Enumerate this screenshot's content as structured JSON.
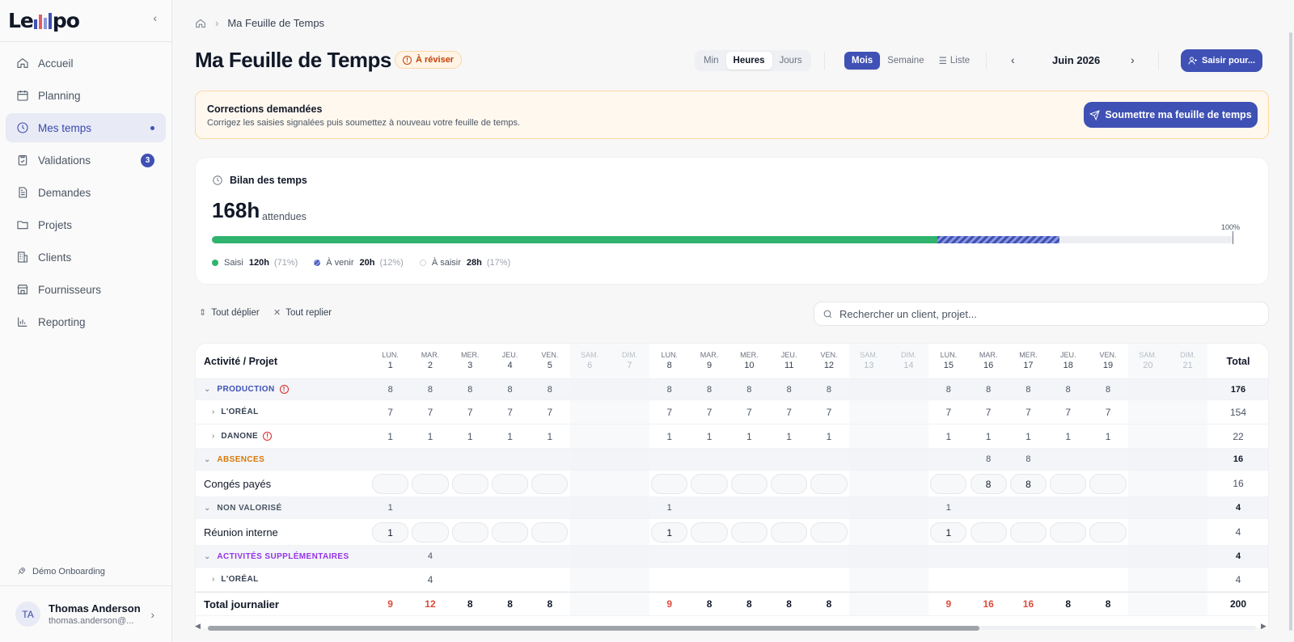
{
  "app": {
    "logo_text_start": "Le",
    "logo_text_end": "po",
    "collapse_icon": "chevron-left-icon"
  },
  "sidebar": {
    "items": [
      {
        "label": "Accueil",
        "icon": "home-icon"
      },
      {
        "label": "Planning",
        "icon": "calendar-icon"
      },
      {
        "label": "Mes temps",
        "icon": "clock-icon",
        "active": true,
        "dot": true
      },
      {
        "label": "Validations",
        "icon": "clipboard-check-icon",
        "badge": "3"
      },
      {
        "label": "Demandes",
        "icon": "document-icon"
      },
      {
        "label": "Projets",
        "icon": "folder-icon"
      },
      {
        "label": "Clients",
        "icon": "building-icon"
      },
      {
        "label": "Fournisseurs",
        "icon": "store-icon"
      },
      {
        "label": "Reporting",
        "icon": "bar-chart-icon"
      }
    ],
    "demo_link": "Démo Onboarding",
    "user": {
      "initials": "TA",
      "name": "Thomas Anderson",
      "email": "thomas.anderson@..."
    }
  },
  "header": {
    "breadcrumb": "Ma Feuille de Temps",
    "title": "Ma Feuille de Temps",
    "status_badge": "À réviser",
    "unit_options": [
      "Min",
      "Heures",
      "Jours"
    ],
    "unit_selected": "Heures",
    "view_options": [
      "Mois",
      "Semaine",
      "Liste"
    ],
    "view_selected": "Mois",
    "month": "Juin 2026",
    "saisir_button": "Saisir pour..."
  },
  "alert": {
    "title": "Corrections demandées",
    "description": "Corrigez les saisies signalées puis soumettez à nouveau votre feuille de temps.",
    "submit_button": "Soumettre ma feuille de temps"
  },
  "bilan": {
    "title": "Bilan des temps",
    "total": "168h",
    "total_suffix": "attendues",
    "end_label": "100%",
    "saisi": {
      "label": "Saisi",
      "value": "120h",
      "pct": "(71%)",
      "fraction": 0.71,
      "color": "#2fb36f"
    },
    "a_venir": {
      "label": "À venir",
      "value": "20h",
      "pct": "(12%)",
      "fraction": 0.12,
      "color": "#3f51b5"
    },
    "a_saisir": {
      "label": "À saisir",
      "value": "28h",
      "pct": "(17%)",
      "fraction": 0.17,
      "color": "#e5e7eb"
    }
  },
  "toolbar": {
    "expand_all": "Tout déplier",
    "collapse_all": "Tout replier",
    "search_placeholder": "Rechercher un client, projet..."
  },
  "grid": {
    "header_label": "Activité / Projet",
    "total_label": "Total",
    "days": [
      {
        "dow": "LUN.",
        "n": "1"
      },
      {
        "dow": "MAR.",
        "n": "2"
      },
      {
        "dow": "MER.",
        "n": "3"
      },
      {
        "dow": "JEU.",
        "n": "4"
      },
      {
        "dow": "VEN.",
        "n": "5"
      },
      {
        "dow": "SAM.",
        "n": "6",
        "we": true
      },
      {
        "dow": "DIM.",
        "n": "7",
        "we": true
      },
      {
        "dow": "LUN.",
        "n": "8"
      },
      {
        "dow": "MAR.",
        "n": "9"
      },
      {
        "dow": "MER.",
        "n": "10"
      },
      {
        "dow": "JEU.",
        "n": "11"
      },
      {
        "dow": "VEN.",
        "n": "12"
      },
      {
        "dow": "SAM.",
        "n": "13",
        "we": true
      },
      {
        "dow": "DIM.",
        "n": "14",
        "we": true
      },
      {
        "dow": "LUN.",
        "n": "15"
      },
      {
        "dow": "MAR.",
        "n": "16"
      },
      {
        "dow": "MER.",
        "n": "17"
      },
      {
        "dow": "JEU.",
        "n": "18"
      },
      {
        "dow": "VEN.",
        "n": "19"
      },
      {
        "dow": "SAM.",
        "n": "20",
        "we": true
      },
      {
        "dow": "DIM.",
        "n": "21",
        "we": true
      }
    ],
    "rows": [
      {
        "kind": "category",
        "label": "PRODUCTION",
        "color": "#3f51b5",
        "warn": true,
        "values": [
          "8",
          "8",
          "8",
          "8",
          "8",
          "",
          "",
          "8",
          "8",
          "8",
          "8",
          "8",
          "",
          "",
          "8",
          "8",
          "8",
          "8",
          "8",
          "",
          ""
        ],
        "total": "176"
      },
      {
        "kind": "client",
        "label": "L'ORÉAL",
        "values": [
          "7",
          "7",
          "7",
          "7",
          "7",
          "",
          "",
          "7",
          "7",
          "7",
          "7",
          "7",
          "",
          "",
          "7",
          "7",
          "7",
          "7",
          "7",
          "",
          ""
        ],
        "total": "154"
      },
      {
        "kind": "client",
        "label": "DANONE",
        "warn": true,
        "values": [
          "1",
          "1",
          "1",
          "1",
          "1",
          "",
          "",
          "1",
          "1",
          "1",
          "1",
          "1",
          "",
          "",
          "1",
          "1",
          "1",
          "1",
          "1",
          "",
          ""
        ],
        "total": "22"
      },
      {
        "kind": "category",
        "label": "ABSENCES",
        "color": "#d97706",
        "values": [
          "",
          "",
          "",
          "",
          "",
          "",
          "",
          "",
          "",
          "",
          "",
          "",
          "",
          "",
          "",
          "8",
          "8",
          "",
          "",
          "",
          ""
        ],
        "total": "16"
      },
      {
        "kind": "input",
        "label": "Congés payés",
        "values": [
          "",
          "",
          "",
          "",
          "",
          "",
          "",
          "",
          "",
          "",
          "",
          "",
          "",
          "",
          "",
          "8",
          "8",
          "",
          "",
          "",
          ""
        ],
        "total": "16"
      },
      {
        "kind": "category",
        "label": "NON VALORISÉ",
        "color": "#4b5563",
        "values": [
          "1",
          "",
          "",
          "",
          "",
          "",
          "",
          "1",
          "",
          "",
          "",
          "",
          "",
          "",
          "1",
          "",
          "",
          "",
          "",
          "",
          ""
        ],
        "total": "4"
      },
      {
        "kind": "input",
        "label": "Réunion interne",
        "values": [
          "1",
          "",
          "",
          "",
          "",
          "",
          "",
          "1",
          "",
          "",
          "",
          "",
          "",
          "",
          "1",
          "",
          "",
          "",
          "",
          "",
          ""
        ],
        "total": "4"
      },
      {
        "kind": "category",
        "label": "ACTIVITÉS SUPPLÉMENTAIRES",
        "color": "#9333ea",
        "values": [
          "",
          "4",
          "",
          "",
          "",
          "",
          "",
          "",
          "",
          "",
          "",
          "",
          "",
          "",
          "",
          "",
          "",
          "",
          "",
          "",
          ""
        ],
        "total": "4"
      },
      {
        "kind": "client",
        "label": "L'ORÉAL",
        "values": [
          "",
          "4",
          "",
          "",
          "",
          "",
          "",
          "",
          "",
          "",
          "",
          "",
          "",
          "",
          "",
          "",
          "",
          "",
          "",
          "",
          ""
        ],
        "total": "4"
      },
      {
        "kind": "total",
        "label": "Total journalier",
        "values": [
          "9",
          "12",
          "8",
          "8",
          "8",
          "",
          "",
          "9",
          "8",
          "8",
          "8",
          "8",
          "",
          "",
          "9",
          "16",
          "16",
          "8",
          "8",
          "",
          ""
        ],
        "red": [
          0,
          1,
          7,
          14,
          15,
          16
        ],
        "total": "200"
      }
    ]
  }
}
